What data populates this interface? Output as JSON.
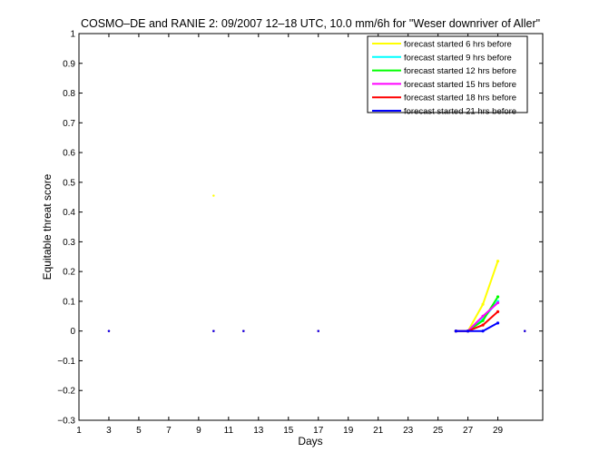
{
  "chart_data": {
    "type": "line",
    "title": "COSMO–DE and RANIE 2: 09/2007 12–18 UTC, 10.0 mm/6h for \"Weser downriver of Aller\"",
    "xlabel": "Days",
    "ylabel": "Equitable threat score",
    "xlim": [
      1,
      32
    ],
    "ylim": [
      -0.3,
      1
    ],
    "xticks": [
      1,
      3,
      5,
      7,
      9,
      11,
      13,
      15,
      17,
      19,
      21,
      23,
      25,
      27,
      29
    ],
    "yticks": [
      -0.3,
      -0.2,
      -0.1,
      0,
      0.1,
      0.2,
      0.3,
      0.4,
      0.5,
      0.6,
      0.7,
      0.8,
      0.9,
      1
    ],
    "xtick_labels": [
      "1",
      "3",
      "5",
      "7",
      "9",
      "11",
      "13",
      "15",
      "17",
      "19",
      "21",
      "23",
      "25",
      "27",
      "29"
    ],
    "ytick_labels": [
      "−0.3",
      "−0.2",
      "−0.1",
      "0",
      "0.1",
      "0.2",
      "0.3",
      "0.4",
      "0.5",
      "0.6",
      "0.7",
      "0.8",
      "0.9",
      "1"
    ],
    "grid": false,
    "legend_position": "top-right",
    "series": [
      {
        "name": "forecast started 6 hrs before",
        "color": "#ffff00",
        "lines": [
          [
            [
              26.2,
              0
            ],
            [
              27,
              0
            ],
            [
              28,
              0.09
            ],
            [
              29,
              0.235
            ]
          ]
        ],
        "points": [
          [
            3,
            0
          ],
          [
            10,
            0.455
          ],
          [
            10,
            0
          ],
          [
            12,
            0
          ],
          [
            17,
            0
          ],
          [
            30.8,
            0
          ]
        ]
      },
      {
        "name": "forecast started 9 hrs before",
        "color": "#00ffff",
        "lines": [
          [
            [
              26.2,
              0
            ],
            [
              27,
              0
            ],
            [
              28,
              0.04
            ],
            [
              29,
              0.1
            ]
          ]
        ],
        "points": [
          [
            3,
            0
          ],
          [
            10,
            0
          ],
          [
            12,
            0
          ],
          [
            17,
            0
          ],
          [
            30.8,
            0
          ]
        ]
      },
      {
        "name": "forecast started 12 hrs before",
        "color": "#00ff00",
        "lines": [
          [
            [
              26.2,
              0
            ],
            [
              27,
              0
            ],
            [
              28,
              0.035
            ],
            [
              29,
              0.115
            ]
          ]
        ],
        "points": [
          [
            3,
            0
          ],
          [
            10,
            0
          ],
          [
            12,
            0
          ],
          [
            17,
            0
          ],
          [
            30.8,
            0
          ]
        ]
      },
      {
        "name": "forecast started 15 hrs before",
        "color": "#ff00ff",
        "lines": [
          [
            [
              26.2,
              0
            ],
            [
              27,
              0
            ],
            [
              28,
              0.05
            ],
            [
              29,
              0.095
            ]
          ]
        ],
        "points": [
          [
            3,
            0
          ],
          [
            10,
            0
          ],
          [
            12,
            0
          ],
          [
            17,
            0
          ],
          [
            30.8,
            0
          ]
        ]
      },
      {
        "name": "forecast started 18 hrs before",
        "color": "#ff0000",
        "lines": [
          [
            [
              26.2,
              0
            ],
            [
              27,
              0
            ],
            [
              28,
              0.02
            ],
            [
              29,
              0.065
            ]
          ]
        ],
        "points": [
          [
            3,
            0
          ],
          [
            10,
            0
          ],
          [
            12,
            0
          ],
          [
            17,
            0
          ],
          [
            30.8,
            0
          ]
        ]
      },
      {
        "name": "forecast started 21 hrs before",
        "color": "#0000ff",
        "lines": [
          [
            [
              26.2,
              0
            ],
            [
              27,
              0
            ],
            [
              28,
              0
            ],
            [
              29,
              0.027
            ]
          ]
        ],
        "points": [
          [
            3,
            0
          ],
          [
            10,
            0
          ],
          [
            12,
            0
          ],
          [
            17,
            0
          ],
          [
            30.8,
            0
          ]
        ]
      }
    ]
  }
}
